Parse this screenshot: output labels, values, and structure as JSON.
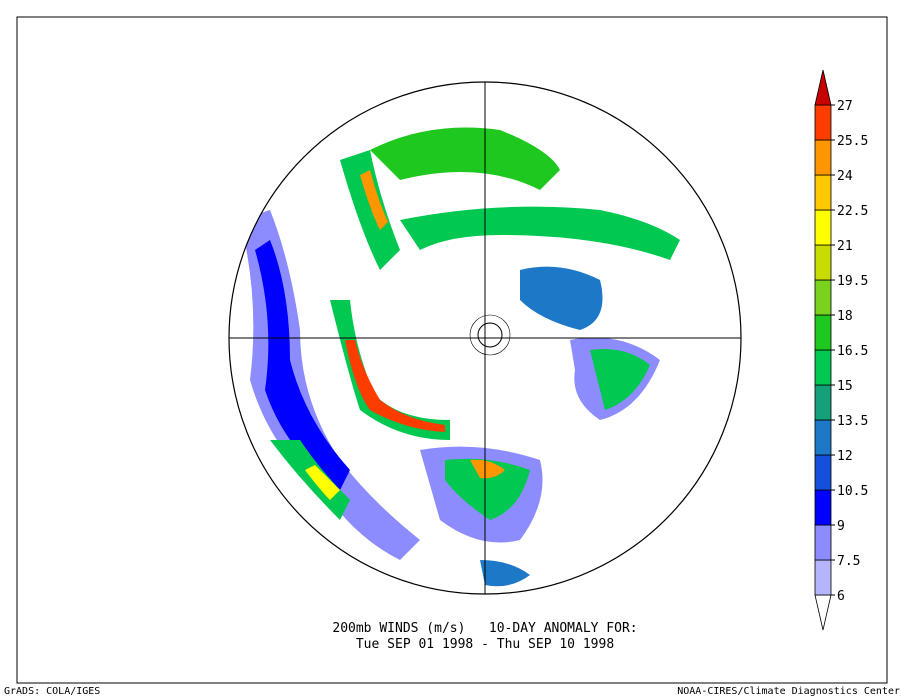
{
  "title_lines": [
    "200mb WINDS (m/s)   10-DAY ANOMALY FOR:",
    "Tue SEP 01 1998 - Thu SEP 10 1998"
  ],
  "colorbar": {
    "levels": [
      6,
      7.5,
      9,
      10.5,
      12,
      13.5,
      15,
      16.5,
      18,
      19.5,
      21,
      22.5,
      24,
      25.5,
      27
    ],
    "colors": [
      "#ffffff",
      "#b4b4ff",
      "#8c8cff",
      "#0000ff",
      "#1450dc",
      "#1e78c8",
      "#14a078",
      "#00c850",
      "#1ec81e",
      "#78d21e",
      "#c8dc00",
      "#ffff00",
      "#ffc800",
      "#ff9600",
      "#ff3c00",
      "#c80000"
    ]
  },
  "footer": {
    "left": "GrADS: COLA/IGES",
    "right": "NOAA-CIRES/Climate Diagnostics Center"
  }
}
